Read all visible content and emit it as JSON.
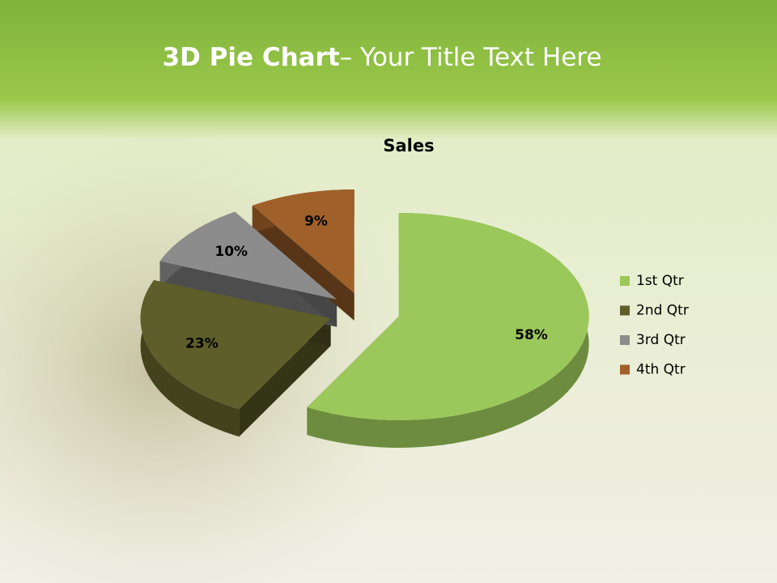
{
  "slide": {
    "title_bold": "3D Pie Chart",
    "title_rest": "– Your Title Text Here"
  },
  "chart_data": {
    "type": "pie",
    "title": "Sales",
    "categories": [
      "1st Qtr",
      "2nd Qtr",
      "3rd Qtr",
      "4th Qtr"
    ],
    "values": [
      58,
      23,
      10,
      9
    ],
    "value_labels": [
      "58%",
      "23%",
      "10%",
      "9%"
    ],
    "colors": [
      "#9bc85a",
      "#5e5e2a",
      "#8c8c8c",
      "#a0602a"
    ],
    "legend": "right"
  }
}
